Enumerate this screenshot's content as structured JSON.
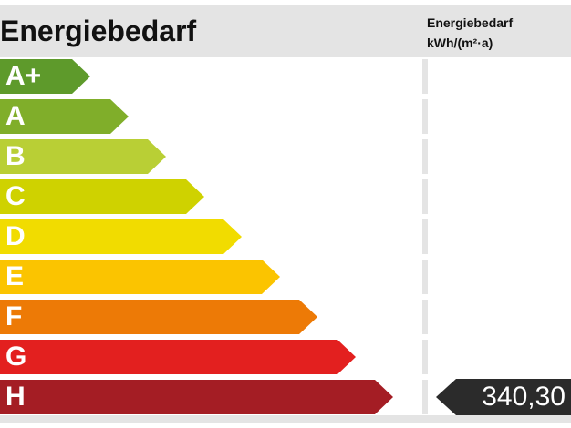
{
  "header": {
    "title": "Energiebedarf",
    "column_title_line1": "Energiebedarf",
    "column_title_line2": "kWh/(m²·a)"
  },
  "classes": [
    {
      "label": "A+",
      "color": "#5e9a2b"
    },
    {
      "label": "A",
      "color": "#80ae2a"
    },
    {
      "label": "B",
      "color": "#b9cf35"
    },
    {
      "label": "C",
      "color": "#cfd200"
    },
    {
      "label": "D",
      "color": "#f1dc00"
    },
    {
      "label": "E",
      "color": "#fbc400"
    },
    {
      "label": "F",
      "color": "#ed7a06"
    },
    {
      "label": "G",
      "color": "#e3201f"
    },
    {
      "label": "H",
      "color": "#a41d24"
    }
  ],
  "current": {
    "class": "H",
    "value": "340,30"
  }
}
